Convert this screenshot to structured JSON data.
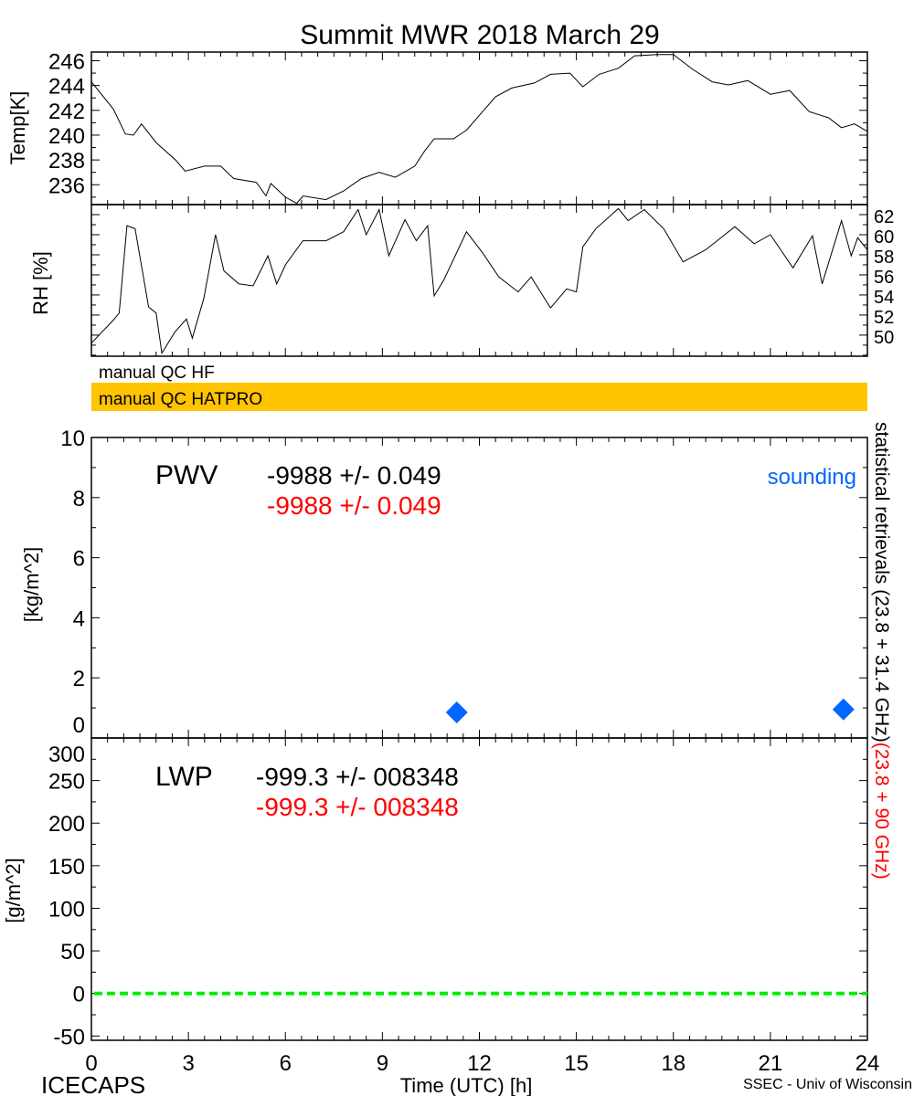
{
  "title": "Summit MWR 2018 March 29",
  "footer": {
    "left": "ICECAPS",
    "center": "Time (UTC) [h]",
    "right": "SSEC - Univ of Wisconsin"
  },
  "qc": {
    "hf_label": "manual QC HF",
    "hatpro_label": "manual QC HATPRO",
    "hatpro_color": "#FFC400"
  },
  "right_label": {
    "black": "statistical retrievals (23.8 + 31.4 GHz)",
    "red": "(23.8 + 90 GHz)"
  },
  "colors": {
    "red": "#FF0000",
    "blue": "#0066FF",
    "green": "#00EE00"
  },
  "chart_data": [
    {
      "id": "temp",
      "type": "line",
      "ylabel": "Temp[K]",
      "xlim": [
        0,
        24
      ],
      "ylim": [
        234.4,
        246.7
      ],
      "yticks": [
        236,
        238,
        240,
        242,
        244,
        246
      ],
      "ytick_side": "left",
      "x": [
        0,
        0.68,
        1.05,
        1.3,
        1.55,
        2.0,
        2.6,
        2.9,
        3.5,
        4.0,
        4.4,
        5.1,
        5.4,
        5.55,
        6.0,
        6.35,
        6.55,
        7.25,
        7.8,
        8.35,
        8.9,
        9.4,
        10.0,
        10.3,
        10.6,
        11.2,
        11.6,
        12.1,
        12.5,
        13.0,
        13.7,
        14.2,
        14.8,
        15.2,
        15.7,
        16.3,
        16.8,
        17.5,
        18.0,
        18.6,
        19.2,
        19.7,
        20.3,
        21.0,
        21.6,
        22.2,
        22.8,
        23.2,
        23.6,
        24
      ],
      "y": [
        244.3,
        242.1,
        240.1,
        240.0,
        240.9,
        239.4,
        238.0,
        237.1,
        237.5,
        237.5,
        236.5,
        236.2,
        235.1,
        236.1,
        235.0,
        234.5,
        235.1,
        234.8,
        235.5,
        236.5,
        237.0,
        236.6,
        237.5,
        238.7,
        239.7,
        239.7,
        240.4,
        241.9,
        243.1,
        243.8,
        244.2,
        244.9,
        245.0,
        243.9,
        244.9,
        245.4,
        246.4,
        246.5,
        246.5,
        245.3,
        244.3,
        244.05,
        244.4,
        243.3,
        243.6,
        241.9,
        241.4,
        240.6,
        240.9,
        240.3
      ]
    },
    {
      "id": "rh",
      "type": "line",
      "ylabel": "RH [%]",
      "xlim": [
        0,
        24
      ],
      "ylim": [
        47.9,
        63
      ],
      "yticks": [
        50,
        52,
        54,
        56,
        58,
        60,
        62
      ],
      "ytick_side": "right",
      "x": [
        0,
        0.68,
        0.86,
        1.1,
        1.35,
        1.77,
        2.0,
        2.18,
        2.58,
        2.94,
        3.12,
        3.48,
        3.84,
        4.1,
        4.56,
        5.0,
        5.46,
        5.73,
        6.0,
        6.54,
        7.26,
        7.8,
        8.25,
        8.5,
        8.9,
        9.2,
        9.7,
        10.05,
        10.4,
        10.6,
        10.9,
        11.6,
        12.1,
        12.6,
        13.2,
        13.6,
        14.2,
        14.7,
        15.0,
        15.2,
        15.6,
        16.3,
        16.6,
        17.1,
        17.7,
        18.3,
        19.0,
        19.9,
        20.5,
        21.0,
        21.7,
        22.3,
        22.6,
        23.2,
        23.5,
        23.7,
        24
      ],
      "y": [
        49.2,
        51.5,
        52.2,
        60.9,
        60.6,
        52.8,
        52.2,
        48.2,
        50.3,
        51.6,
        49.7,
        53.7,
        60.0,
        56.4,
        55.1,
        54.9,
        57.9,
        55.1,
        57.0,
        59.4,
        59.4,
        60.3,
        62.5,
        60.0,
        62.5,
        57.9,
        61.5,
        59.4,
        60.9,
        53.9,
        55.5,
        60.3,
        58.2,
        55.8,
        54.3,
        55.8,
        52.7,
        54.6,
        54.3,
        58.8,
        60.6,
        62.6,
        61.4,
        62.5,
        60.6,
        57.3,
        58.5,
        60.8,
        59.1,
        60.0,
        56.7,
        59.9,
        55.1,
        61.4,
        57.9,
        59.7,
        58.5
      ]
    },
    {
      "id": "pwv",
      "type": "scatter",
      "label": "PWV",
      "ylabel": "[kg/m^2]",
      "xlim": [
        0,
        24
      ],
      "ylim": [
        0,
        10
      ],
      "yticks": [
        0,
        2,
        4,
        6,
        8,
        10
      ],
      "stats_black": "-9988 +/- 0.049",
      "stats_red": "-9988 +/- 0.049",
      "legend": "sounding",
      "legend_placement": "top-right",
      "series": [
        {
          "name": "sounding",
          "marker": "diamond",
          "color": "#0066FF",
          "x": [
            11.3,
            23.26
          ],
          "y": [
            0.85,
            0.95
          ]
        }
      ]
    },
    {
      "id": "lwp",
      "type": "line",
      "label": "LWP",
      "ylabel": "[g/m^2]",
      "xlim": [
        0,
        24
      ],
      "ylim": [
        -55,
        300
      ],
      "yticks": [
        -50,
        0,
        50,
        100,
        150,
        200,
        250,
        300
      ],
      "stats_black": "-999.3 +/- 008348",
      "stats_red": "-999.3 +/- 008348",
      "reference_line": {
        "y": 0,
        "style": "dashed",
        "color": "#00EE00"
      },
      "xticks": [
        0,
        3,
        6,
        9,
        12,
        15,
        18,
        21,
        24
      ]
    }
  ]
}
